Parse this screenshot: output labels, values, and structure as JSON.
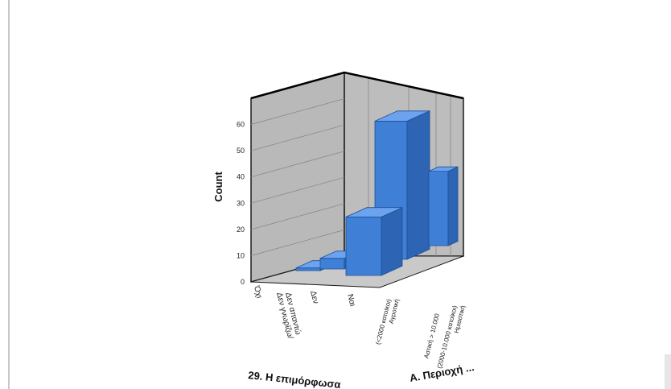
{
  "chart_data": {
    "type": "bar",
    "subtype": "3d-clustered",
    "ylabel": "Count",
    "ylim": [
      0,
      70
    ],
    "yticks": [
      0,
      10,
      20,
      30,
      40,
      50,
      60
    ],
    "grid": true,
    "categories": [
      "Όχι",
      "Δεν γνωρίζω/ Δεν απαντώ",
      "Δεν",
      "Ναι"
    ],
    "series": [
      {
        "name": "Αγροτική (<2000 κατοίκοι)",
        "values": [
          0,
          0,
          0,
          0
        ]
      },
      {
        "name": "Αστική > 10.000",
        "values": [
          0,
          0,
          0,
          28
        ]
      },
      {
        "name": "Ημιαστική (2000-10.000 κατοίκοι)",
        "values": [
          0,
          0,
          0,
          52
        ]
      },
      {
        "name": "",
        "values": [
          0,
          1,
          4,
          22
        ]
      }
    ],
    "xlabel": "29. Η επιμόρφωσα",
    "zlabel": "Α. Περιοχή ...",
    "colors": {
      "bar_front": "#3f80d6",
      "bar_side": "#2d64b4",
      "bar_top": "#6da3ee",
      "wall": "#b9b9b9",
      "floor": "#c9c9c9"
    }
  }
}
